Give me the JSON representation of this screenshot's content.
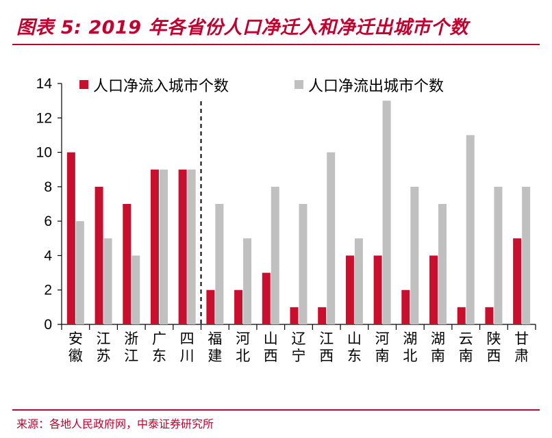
{
  "title": "图表 5: 2019 年各省份人口净迁入和净迁出城市个数",
  "source": "来源：各地人民政府网，中泰证券研究所",
  "colors": {
    "accent": "#c0002f",
    "inflow": "#c8102e",
    "outflow": "#c0c0c0",
    "axis": "#000000"
  },
  "chart_data": {
    "type": "bar",
    "title": "2019 年各省份人口净迁入和净迁出城市个数",
    "xlabel": "",
    "ylabel": "",
    "ylim": [
      0,
      14
    ],
    "yticks": [
      0,
      2,
      4,
      6,
      8,
      10,
      12,
      14
    ],
    "legend_position": "top",
    "categories": [
      "安徽",
      "江苏",
      "浙江",
      "广东",
      "四川",
      "福建",
      "河北",
      "山西",
      "辽宁",
      "江西",
      "山东",
      "河南",
      "湖北",
      "湖南",
      "云南",
      "陕西",
      "甘肃"
    ],
    "series": [
      {
        "name": "人口净流入城市个数",
        "color": "#c8102e",
        "values": [
          10,
          8,
          7,
          9,
          9,
          2,
          2,
          3,
          1,
          1,
          4,
          4,
          2,
          4,
          1,
          1,
          5
        ]
      },
      {
        "name": "人口净流出城市个数",
        "color": "#c0c0c0",
        "values": [
          6,
          5,
          4,
          9,
          9,
          7,
          5,
          8,
          7,
          10,
          5,
          13,
          8,
          7,
          11,
          8,
          8
        ]
      }
    ],
    "divider_after_category": "四川"
  }
}
